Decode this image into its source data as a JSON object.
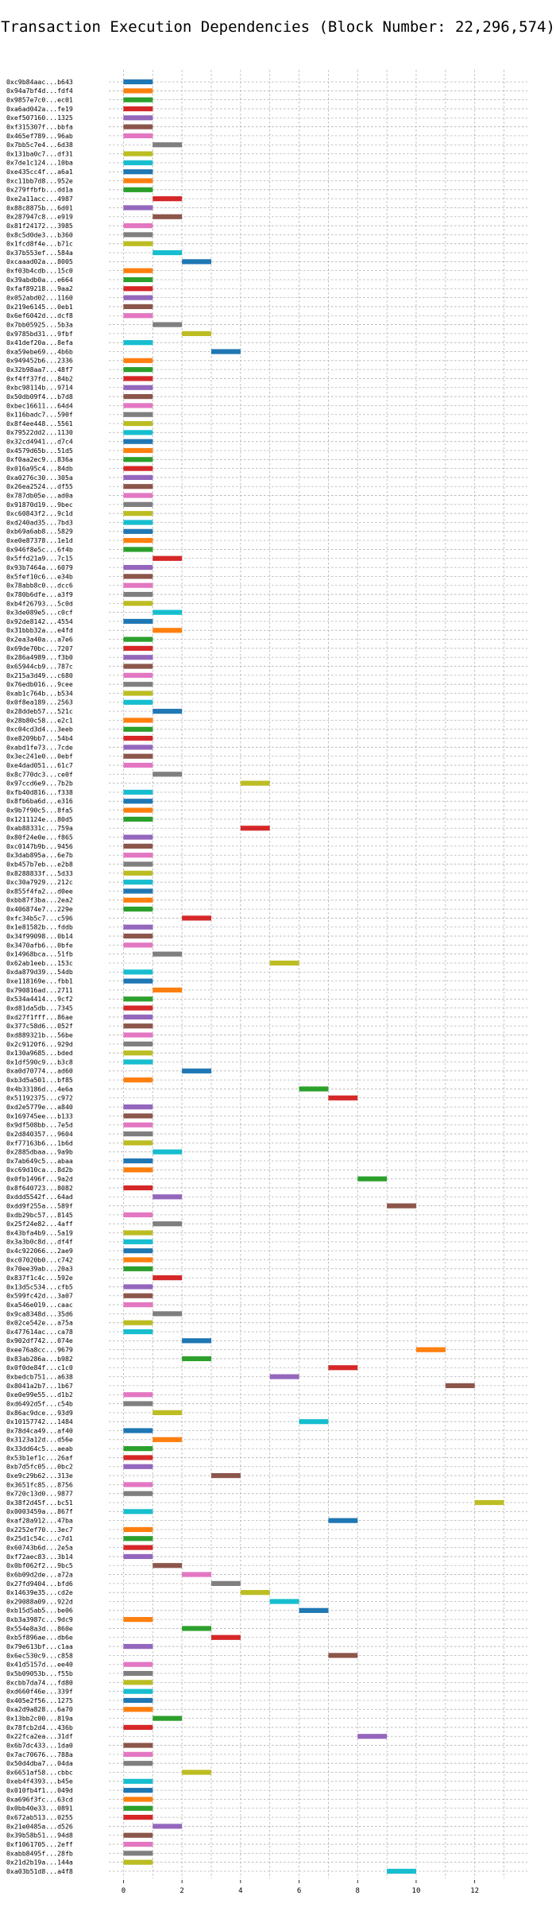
{
  "chart_data": {
    "type": "bar",
    "orientation": "horizontal-gantt",
    "title": "Transaction Execution Dependencies (Block Number: 22,296,574)",
    "xlabel": "",
    "ylabel": "",
    "xlim": [
      -0.5,
      13.8
    ],
    "xticks": [
      0,
      2,
      4,
      6,
      8,
      10,
      12
    ],
    "grid": true,
    "palette": [
      "#1f77b4",
      "#ff7f0e",
      "#2ca02c",
      "#d62728",
      "#9467bd",
      "#8c564b",
      "#e377c2",
      "#7f7f7f",
      "#bcbd22",
      "#17becf"
    ],
    "rows": [
      [
        "0xc9b84aac...b643",
        0
      ],
      [
        "0x94a7bf4d...fdf4",
        0
      ],
      [
        "0x9857e7c0...ec01",
        0
      ],
      [
        "0xa6ad042a...fe19",
        0
      ],
      [
        "0xef507160...1325",
        0
      ],
      [
        "0xf315307f...bbfa",
        0
      ],
      [
        "0x465ef789...96ab",
        0
      ],
      [
        "0x7bb5c7e4...6d38",
        1
      ],
      [
        "0x131ba0c7...df31",
        0
      ],
      [
        "0x7de1c124...10ba",
        0
      ],
      [
        "0xe435cc4f...a6a1",
        0
      ],
      [
        "0xc11bb7d8...952e",
        0
      ],
      [
        "0x279ffbfb...dd1a",
        0
      ],
      [
        "0xe2a11acc...4987",
        1
      ],
      [
        "0x88c8875b...6d01",
        0
      ],
      [
        "0x287947c8...e919",
        1
      ],
      [
        "0x81f24172...3985",
        0
      ],
      [
        "0x8c5d0de3...b360",
        0
      ],
      [
        "0x1fcd8f4e...b71c",
        0
      ],
      [
        "0x37b553ef...584a",
        1
      ],
      [
        "0xcaaad02a...8005",
        2
      ],
      [
        "0xf03b4cdb...15c0",
        0
      ],
      [
        "0x39abdb0a...e664",
        0
      ],
      [
        "0xfaf89218...9aa2",
        0
      ],
      [
        "0x052abd02...1160",
        0
      ],
      [
        "0x219e6145...0eb1",
        0
      ],
      [
        "0x6ef6042d...dcf8",
        0
      ],
      [
        "0x7bb05925...5b3a",
        1
      ],
      [
        "0x9785bd31...9fbf",
        2
      ],
      [
        "0x41def20a...8efa",
        0
      ],
      [
        "0xa59ebe69...4b6b",
        3
      ],
      [
        "0x949452b6...2336",
        0
      ],
      [
        "0x32b98aa7...48f7",
        0
      ],
      [
        "0xf4ff37fd...84b2",
        0
      ],
      [
        "0xbc98114b...9714",
        0
      ],
      [
        "0x50db09f4...b7d8",
        0
      ],
      [
        "0xbec16611...64d4",
        0
      ],
      [
        "0x116badc7...590f",
        0
      ],
      [
        "0x8f4ee448...5561",
        0
      ],
      [
        "0x79522dd2...1130",
        0
      ],
      [
        "0x32cd4941...d7c4",
        0
      ],
      [
        "0x4579d65b...51d5",
        0
      ],
      [
        "0xf0aa2ec9...836a",
        0
      ],
      [
        "0x016a95c4...84db",
        0
      ],
      [
        "0xa0276c30...305a",
        0
      ],
      [
        "0x26ea2524...df55",
        0
      ],
      [
        "0x787db05e...ad0a",
        0
      ],
      [
        "0x91870d19...9bec",
        0
      ],
      [
        "0xc60843f2...9c1d",
        0
      ],
      [
        "0xd240ad35...7bd3",
        0
      ],
      [
        "0xb69a6ab8...5829",
        0
      ],
      [
        "0xe0e87378...1e1d",
        0
      ],
      [
        "0x946f8e5c...6f4b",
        0
      ],
      [
        "0x5ffd21a9...7c15",
        1
      ],
      [
        "0x93b7464a...6079",
        0
      ],
      [
        "0x5fef10c6...e34b",
        0
      ],
      [
        "0x78abb8c0...dcc6",
        0
      ],
      [
        "0x780b6dfe...a3f9",
        0
      ],
      [
        "0xb4f26793...5c0d",
        0
      ],
      [
        "0x3de089e5...c0cf",
        1
      ],
      [
        "0x92de8142...4554",
        0
      ],
      [
        "0x31bbb32a...e4fd",
        1
      ],
      [
        "0x2ea3a40a...a7e6",
        0
      ],
      [
        "0x69de70bc...7207",
        0
      ],
      [
        "0x286a4989...f3b0",
        0
      ],
      [
        "0x65944cb9...787c",
        0
      ],
      [
        "0x215a3d49...c680",
        0
      ],
      [
        "0x76edb016...9cee",
        0
      ],
      [
        "0xab1c764b...b534",
        0
      ],
      [
        "0x0f8ea189...2563",
        0
      ],
      [
        "0x28ddeb57...521c",
        1
      ],
      [
        "0x28b80c58...e2c1",
        0
      ],
      [
        "0xc04cd3d4...3eeb",
        0
      ],
      [
        "0xe8209bb7...54b4",
        0
      ],
      [
        "0xabd1fe73...7cde",
        0
      ],
      [
        "0x3ec241e0...0ebf",
        0
      ],
      [
        "0xe4dad051...61c7",
        0
      ],
      [
        "0x8c770dc3...ce0f",
        1
      ],
      [
        "0x97ccd6e9...7b2b",
        4
      ],
      [
        "0xfb40d816...f338",
        0
      ],
      [
        "0x8fb6ba6d...e316",
        0
      ],
      [
        "0x9b7f90c5...8fa5",
        0
      ],
      [
        "0x1211124e...80d5",
        0
      ],
      [
        "0xab88331c...759a",
        4
      ],
      [
        "0x80f24e0e...f865",
        0
      ],
      [
        "0xc0147b9b...9456",
        0
      ],
      [
        "0x3dab895a...6e7b",
        0
      ],
      [
        "0xb457b7eb...e2b8",
        0
      ],
      [
        "0x8288833f...5d33",
        0
      ],
      [
        "0xc30a7929...212c",
        0
      ],
      [
        "0x855f4fa2...d0ee",
        0
      ],
      [
        "0xbb87f3ba...2ea2",
        0
      ],
      [
        "0x406874e7...229e",
        0
      ],
      [
        "0xfc34b5c7...c596",
        2
      ],
      [
        "0x1e81582b...fddb",
        0
      ],
      [
        "0x34f99098...0b14",
        0
      ],
      [
        "0x3470afb6...0bfe",
        0
      ],
      [
        "0x14968bca...51fb",
        1
      ],
      [
        "0x62ab1eeb...153c",
        5
      ],
      [
        "0xda879d39...54db",
        0
      ],
      [
        "0xe118169e...fbb1",
        0
      ],
      [
        "0x790816ad...2711",
        1
      ],
      [
        "0x534a4414...9cf2",
        0
      ],
      [
        "0xd81da5db...7345",
        0
      ],
      [
        "0xd27f1fff...86ae",
        0
      ],
      [
        "0x377c58d6...052f",
        0
      ],
      [
        "0xd889321b...56be",
        0
      ],
      [
        "0x2c9120f6...929d",
        0
      ],
      [
        "0x130a9685...bded",
        0
      ],
      [
        "0x1df590c9...b3c8",
        0
      ],
      [
        "0xa0d70774...ad60",
        2
      ],
      [
        "0xb3d5a501...bf85",
        0
      ],
      [
        "0x4b33186d...4e6a",
        6
      ],
      [
        "0x51192375...c972",
        7
      ],
      [
        "0xd2e5779e...a840",
        0
      ],
      [
        "0x169745ee...b133",
        0
      ],
      [
        "0x9df508bb...7e5d",
        0
      ],
      [
        "0x2d840357...9604",
        0
      ],
      [
        "0xf77163b6...1b6d",
        0
      ],
      [
        "0x2885dbaa...9a9b",
        1
      ],
      [
        "0x7ab649c5...abaa",
        0
      ],
      [
        "0xc69d10ca...8d2b",
        0
      ],
      [
        "0x0fb1496f...9a2d",
        8
      ],
      [
        "0x8f640723...8082",
        0
      ],
      [
        "0xddd5542f...64ad",
        1
      ],
      [
        "0xdd9f255a...589f",
        9
      ],
      [
        "0xdb29bc57...8145",
        0
      ],
      [
        "0x25f24e82...4aff",
        1
      ],
      [
        "0x43bfa4b9...5a19",
        0
      ],
      [
        "0x3a3b0c8d...df4f",
        0
      ],
      [
        "0x4c922066...2ae9",
        0
      ],
      [
        "0xc07020b0...c742",
        0
      ],
      [
        "0x70ee39ab...20a3",
        0
      ],
      [
        "0x837f1c4c...592e",
        1
      ],
      [
        "0x13d5c534...cfb5",
        0
      ],
      [
        "0x599fc42d...3a07",
        0
      ],
      [
        "0xa546e019...caac",
        0
      ],
      [
        "0x9ca8348d...35d6",
        1
      ],
      [
        "0x02ce542e...a75a",
        0
      ],
      [
        "0x477614ac...ca78",
        0
      ],
      [
        "0x902df742...074e",
        2
      ],
      [
        "0xee76a8cc...9679",
        10
      ],
      [
        "0x83ab286a...b982",
        2
      ],
      [
        "0x0f0de84f...c1c0",
        7
      ],
      [
        "0xbedcb751...a638",
        5
      ],
      [
        "0x8041a2b7...1b67",
        11
      ],
      [
        "0xe0e99e55...d1b2",
        0
      ],
      [
        "0xd6492d5f...c54b",
        0
      ],
      [
        "0x86ac9dce...93d9",
        1
      ],
      [
        "0x10157742...1484",
        6
      ],
      [
        "0x78d4ca49...af40",
        0
      ],
      [
        "0x3123a12d...d56e",
        1
      ],
      [
        "0x33dd64c5...aeab",
        0
      ],
      [
        "0x53b1ef1c...26af",
        0
      ],
      [
        "0xb7d5fc05...0bc2",
        0
      ],
      [
        "0xe9c29b62...313e",
        3
      ],
      [
        "0x3651fc85...8756",
        0
      ],
      [
        "0x720c13d0...9877",
        0
      ],
      [
        "0x38f2d45f...bc51",
        12
      ],
      [
        "0x0003459a...867f",
        0
      ],
      [
        "0xaf28a912...47ba",
        7
      ],
      [
        "0x2252ef70...3ec7",
        0
      ],
      [
        "0x25d1c54c...c7d1",
        0
      ],
      [
        "0x60743b6d...2e5a",
        0
      ],
      [
        "0xf72aec83...3b14",
        0
      ],
      [
        "0x0bf062f2...9bc5",
        1
      ],
      [
        "0x6b09d2de...a72a",
        2
      ],
      [
        "0x27fd9404...bfd6",
        3
      ],
      [
        "0x14639e35...cd2e",
        4
      ],
      [
        "0x29088a09...922d",
        5
      ],
      [
        "0xb15d5ab5...be06",
        6
      ],
      [
        "0xb3a3987c...9dc9",
        0
      ],
      [
        "0x554e8a3d...860e",
        2
      ],
      [
        "0xb5f896ae...db6e",
        3
      ],
      [
        "0x79e613bf...c1aa",
        0
      ],
      [
        "0x6ec530c9...c858",
        7
      ],
      [
        "0x41d5157d...ee40",
        0
      ],
      [
        "0x5b09053b...f55b",
        0
      ],
      [
        "0xcbb7da74...fd80",
        0
      ],
      [
        "0xd660f46e...339f",
        0
      ],
      [
        "0x405e2f56...1275",
        0
      ],
      [
        "0xa2d9a828...6a70",
        0
      ],
      [
        "0x13bb2c00...819a",
        1
      ],
      [
        "0x78fcb2d4...436b",
        0
      ],
      [
        "0x22fca2ea...31df",
        8
      ],
      [
        "0x6b7dc433...1da0",
        0
      ],
      [
        "0x7ac70676...788a",
        0
      ],
      [
        "0x50d4dba7...04da",
        0
      ],
      [
        "0x6651af58...cbbc",
        2
      ],
      [
        "0xeb4f4393...b45e",
        0
      ],
      [
        "0x010fb4f1...049d",
        0
      ],
      [
        "0xa696f3fc...63cd",
        0
      ],
      [
        "0x0bb40e33...0891",
        0
      ],
      [
        "0x672ab513...0255",
        0
      ],
      [
        "0x21e0485a...d526",
        1
      ],
      [
        "0x39b58b51...94d8",
        0
      ],
      [
        "0xf1061705...2eff",
        0
      ],
      [
        "0xabb8495f...28fb",
        0
      ],
      [
        "0x21d2b19a...144a",
        0
      ],
      [
        "0xa03b51d8...a4f8",
        9
      ]
    ]
  }
}
